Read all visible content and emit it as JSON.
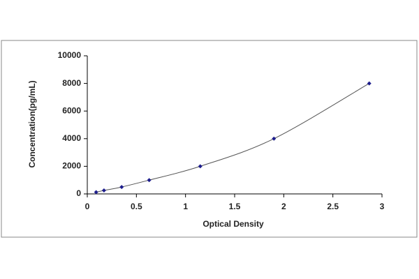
{
  "chart_data": {
    "type": "scatter",
    "xlabel": "Optical Density",
    "ylabel": "Concentration(pg/mL)",
    "x": [
      0.09,
      0.17,
      0.35,
      0.63,
      1.15,
      1.9,
      2.87
    ],
    "values": [
      125,
      250,
      500,
      1000,
      2000,
      4000,
      8000
    ],
    "color": "#1c1c8c",
    "line_color": "#555555",
    "xlim": [
      0,
      3
    ],
    "xticks": [
      0,
      0.5,
      1,
      1.5,
      2,
      2.5,
      3
    ],
    "ylim": [
      0,
      10000
    ],
    "yticks": [
      0,
      2000,
      4000,
      6000,
      8000,
      10000
    ],
    "grid": false
  }
}
